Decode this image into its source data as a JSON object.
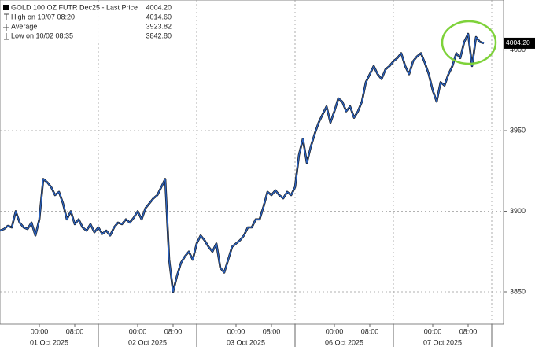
{
  "chart_data": {
    "type": "line",
    "series": [
      {
        "name": "GOLD 100 OZ FUTR Dec25 - Last Price",
        "color": "#2b62c0",
        "values": [
          3888,
          3889,
          3891,
          3890,
          3900,
          3893,
          3890,
          3889,
          3893,
          3885,
          3895,
          3920,
          3918,
          3915,
          3910,
          3912,
          3905,
          3895,
          3900,
          3892,
          3895,
          3890,
          3888,
          3892,
          3887,
          3890,
          3886,
          3888,
          3885,
          3890,
          3893,
          3892,
          3895,
          3893,
          3896,
          3900,
          3895,
          3902,
          3905,
          3908,
          3910,
          3915,
          3920,
          3870,
          3850,
          3860,
          3868,
          3872,
          3875,
          3870,
          3880,
          3885,
          3882,
          3878,
          3875,
          3880,
          3865,
          3862,
          3870,
          3878,
          3880,
          3882,
          3885,
          3890,
          3890,
          3895,
          3895,
          3903,
          3912,
          3910,
          3913,
          3910,
          3908,
          3912,
          3910,
          3915,
          3935,
          3945,
          3930,
          3940,
          3948,
          3955,
          3960,
          3965,
          3955,
          3962,
          3970,
          3968,
          3962,
          3965,
          3958,
          3962,
          3968,
          3980,
          3985,
          3990,
          3985,
          3982,
          3988,
          3990,
          3993,
          3995,
          3998,
          3990,
          3985,
          3993,
          3996,
          3998,
          3992,
          3985,
          3975,
          3968,
          3980,
          3978,
          3985,
          3990,
          3998,
          3995,
          4005,
          4010,
          3990,
          4008,
          4005,
          4004.2
        ]
      }
    ],
    "legend": [
      {
        "text": "GOLD 100 OZ FUTR Dec25 - Last Price",
        "stat": "4004.20"
      },
      {
        "text": "High on 10/07 08:20",
        "stat": "4014.60"
      },
      {
        "text": "Average",
        "stat": "3923.82"
      },
      {
        "text": "Low on 10/02 08:35",
        "stat": "3842.80"
      }
    ],
    "last_label": "4004.20",
    "xlim": [
      0,
      128
    ],
    "ylim": [
      3830,
      4031
    ],
    "yticks": [
      3850,
      3900,
      3950,
      4000
    ],
    "day_bounds": [
      25,
      50,
      75,
      100,
      125
    ],
    "xticks": [
      {
        "value": 10,
        "label": "00:00"
      },
      {
        "value": 19,
        "label": "08:00"
      },
      {
        "value": 35,
        "label": "00:00"
      },
      {
        "value": 44,
        "label": "08:00"
      },
      {
        "value": 60,
        "label": "00:00"
      },
      {
        "value": 69,
        "label": "08:00"
      },
      {
        "value": 85,
        "label": "00:00"
      },
      {
        "value": 94,
        "label": "08:00"
      },
      {
        "value": 110,
        "label": "00:00"
      },
      {
        "value": 119,
        "label": "08:00"
      }
    ],
    "date_ticks": [
      {
        "value": 10,
        "label": "01 Oct 2025"
      },
      {
        "value": 35,
        "label": "02 Oct 2025"
      },
      {
        "value": 60,
        "label": "03 Oct 2025"
      },
      {
        "value": 85,
        "label": "06 Oct 2025"
      },
      {
        "value": 110,
        "label": "07 Oct 2025"
      }
    ],
    "grid": true
  }
}
